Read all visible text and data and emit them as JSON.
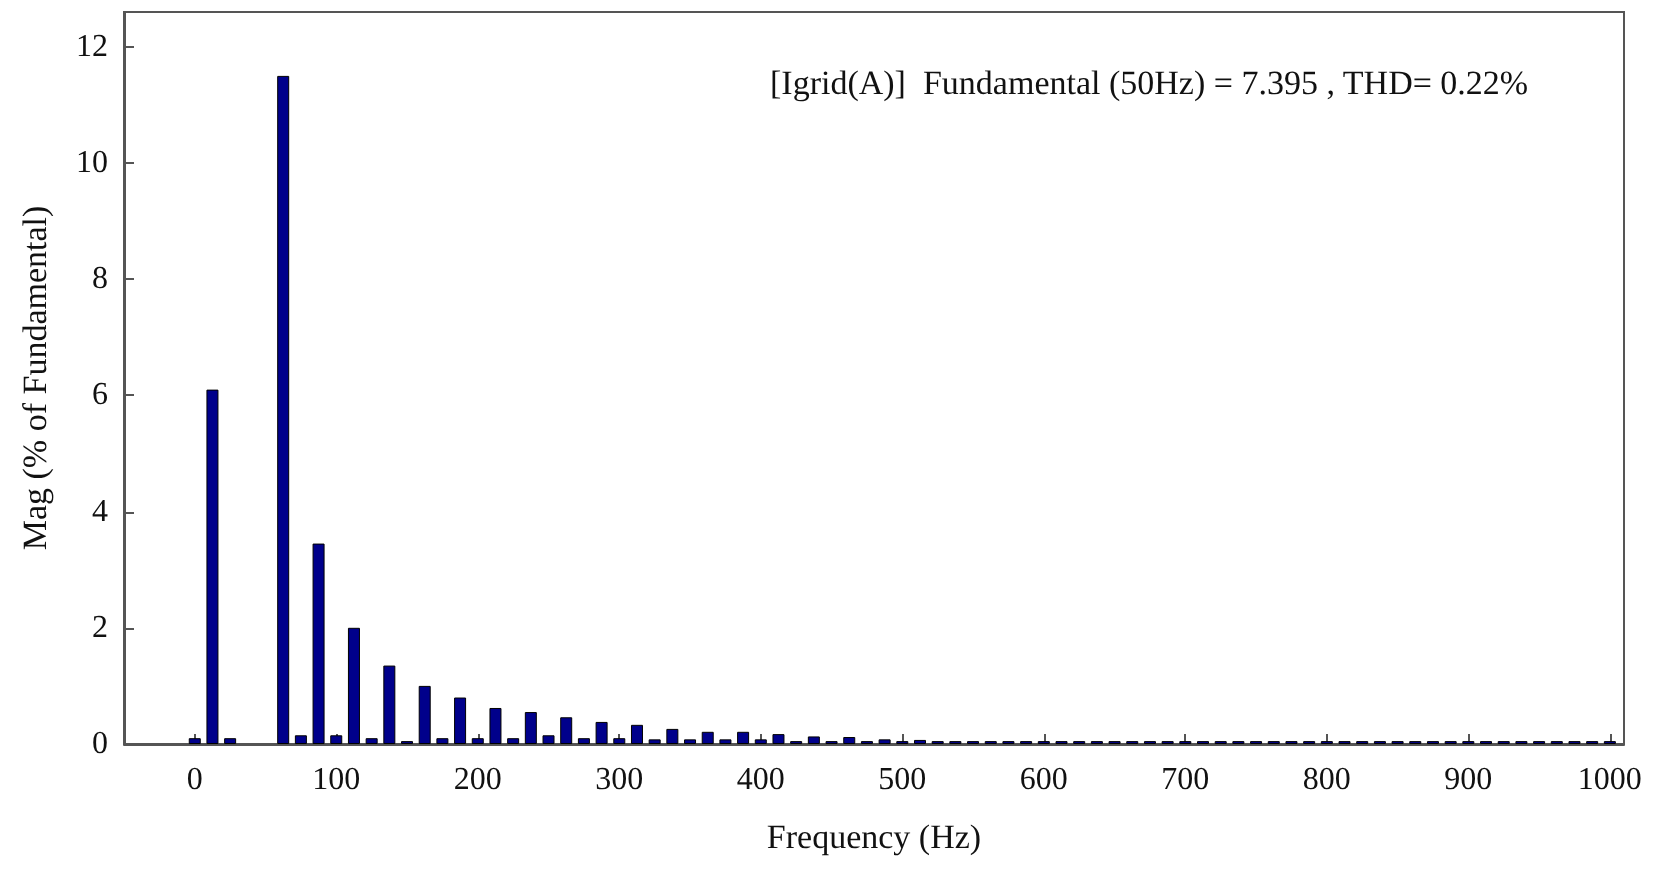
{
  "chart_data": {
    "type": "bar",
    "xlabel": "Frequency (Hz)",
    "ylabel": "Mag (% of Fundamental)",
    "annotations": [
      "[Igrid(A)]  Fundamental (50Hz) = 7.395 , THD= 0.22%"
    ],
    "x": [
      0,
      12.5,
      25,
      37.5,
      50,
      62.5,
      75,
      87.5,
      100,
      112.5,
      125,
      137.5,
      150,
      162.5,
      175,
      187.5,
      200,
      212.5,
      225,
      237.5,
      250,
      262.5,
      275,
      287.5,
      300,
      312.5,
      325,
      337.5,
      350,
      362.5,
      375,
      387.5,
      400,
      412.5,
      425,
      437.5,
      450,
      462.5,
      475,
      487.5,
      500,
      512.5,
      525,
      537.5,
      550,
      562.5,
      575,
      587.5,
      600,
      612.5,
      625,
      637.5,
      650,
      662.5,
      675,
      687.5,
      700,
      712.5,
      725,
      737.5,
      750,
      762.5,
      775,
      787.5,
      800,
      812.5,
      825,
      837.5,
      850,
      862.5,
      875,
      887.5,
      900,
      912.5,
      925,
      937.5,
      950,
      962.5,
      975,
      987.5,
      1000
    ],
    "values": [
      0.1,
      6.1,
      0.1,
      null,
      null,
      11.5,
      0.15,
      3.45,
      0.15,
      2.0,
      0.1,
      1.35,
      0.05,
      1.0,
      0.1,
      0.8,
      0.1,
      0.62,
      0.1,
      0.55,
      0.15,
      0.46,
      0.1,
      0.38,
      0.1,
      0.33,
      0.08,
      0.26,
      0.08,
      0.21,
      0.08,
      0.21,
      0.08,
      0.17,
      0.05,
      0.13,
      0.05,
      0.12,
      0.05,
      0.08,
      0.05,
      0.07,
      0.05,
      0.05,
      0.05,
      0.05,
      0.05,
      0.05,
      0.05,
      0.05,
      0.05,
      0.05,
      0.05,
      0.05,
      0.05,
      0.05,
      0.05,
      0.05,
      0.05,
      0.05,
      0.05,
      0.05,
      0.05,
      0.05,
      0.05,
      0.05,
      0.05,
      0.05,
      0.05,
      0.05,
      0.05,
      0.05,
      0.05,
      0.05,
      0.05,
      0.05,
      0.05,
      0.05,
      0.05,
      0.05,
      0.05
    ],
    "color": "#00008b",
    "xlim": [
      -50,
      1010
    ],
    "ylim": [
      0,
      12.6
    ],
    "xticks": [
      0,
      100,
      200,
      300,
      400,
      500,
      600,
      700,
      800,
      900,
      1000
    ],
    "yticks": [
      0,
      2,
      4,
      6,
      8,
      10,
      12
    ],
    "grid": false
  }
}
